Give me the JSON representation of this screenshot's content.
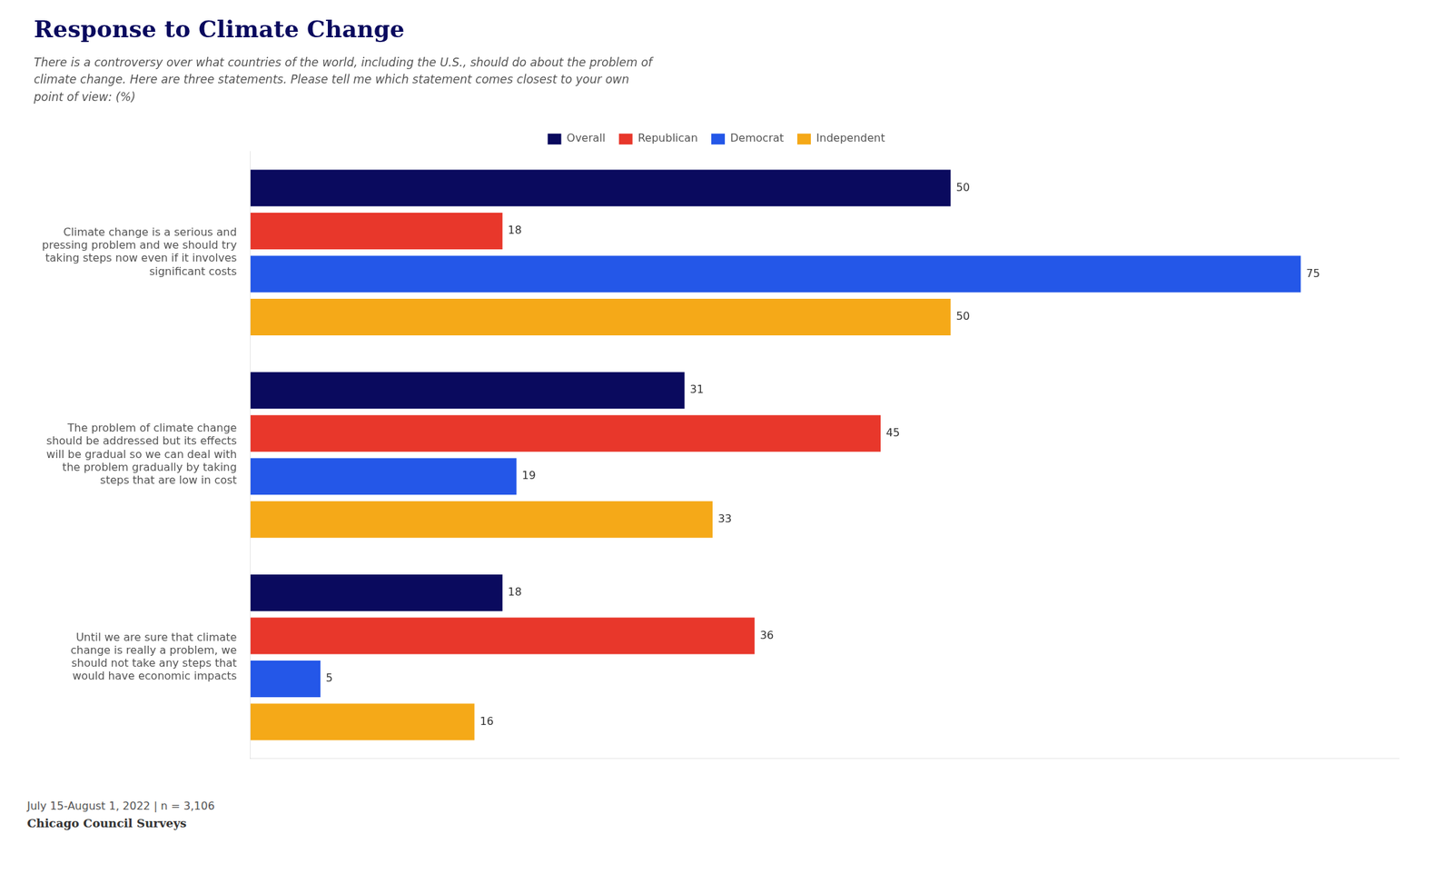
{
  "chart_data": {
    "type": "bar",
    "orientation": "horizontal",
    "title": "Response to Climate Change",
    "subtitle": "There is a controversy over what countries of the world, including the U.S., should do about the problem of\nclimate change. Here are three statements. Please tell me which statement comes closest to your own\npoint of view: (%)",
    "categories": [
      "Climate change is a serious and\npressing problem and we should try\ntaking steps now even if it involves\nsignificant costs",
      "The problem of climate change\nshould be addressed but its effects\nwill be gradual so we can deal with\nthe problem gradually by taking\nsteps that are low in cost",
      "Until we are sure that climate\nchange is really a problem, we\nshould not take any steps that\nwould have economic impacts"
    ],
    "series": [
      {
        "name": "Overall",
        "color": "#0a0a5e",
        "values": [
          50,
          31,
          18
        ]
      },
      {
        "name": "Republican",
        "color": "#e8372b",
        "values": [
          18,
          45,
          36
        ]
      },
      {
        "name": "Democrat",
        "color": "#2457e8",
        "values": [
          75,
          19,
          5
        ]
      },
      {
        "name": "Independent",
        "color": "#f5a918",
        "values": [
          50,
          33,
          16
        ]
      }
    ],
    "xlim": [
      0,
      82
    ],
    "tick_labels": "y",
    "grid": false,
    "legend": "top",
    "data_labels": true,
    "annotations": [
      "July 15-August 1, 2022 | n = 3,106",
      "Chicago Council Surveys"
    ]
  }
}
